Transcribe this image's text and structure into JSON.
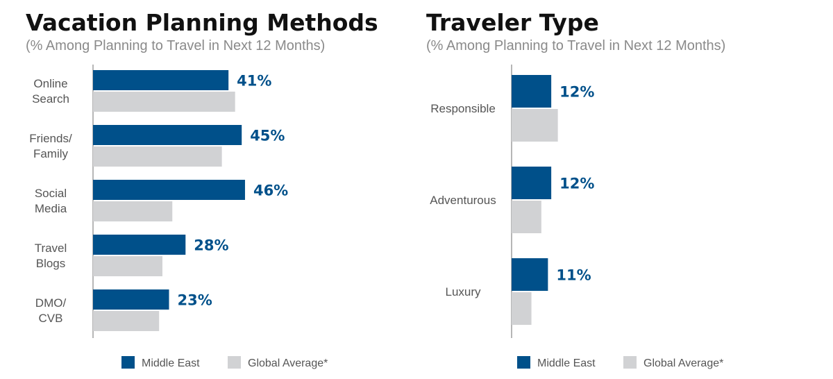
{
  "colors": {
    "primary": "#00508a",
    "secondary": "#d1d2d4",
    "axis": "#6e6e6e"
  },
  "chart_data": [
    {
      "type": "bar",
      "orientation": "horizontal",
      "title": "Vacation Planning Methods",
      "subtitle": "(% Among Planning to Travel in Next 12 Months)",
      "categories": [
        [
          "Online",
          "Search"
        ],
        [
          "Friends/",
          "Family"
        ],
        [
          "Social",
          "Media"
        ],
        [
          "Travel",
          "Blogs"
        ],
        [
          "DMO/",
          "CVB"
        ]
      ],
      "series": [
        {
          "name": "Middle East",
          "values": [
            41,
            45,
            46,
            28,
            23
          ],
          "labels": [
            "41%",
            "45%",
            "46%",
            "28%",
            "23%"
          ]
        },
        {
          "name": "Global Average*",
          "values": [
            43,
            39,
            24,
            21,
            20
          ]
        }
      ],
      "xlim": [
        0,
        100
      ],
      "grid": false,
      "legend_position": "bottom"
    },
    {
      "type": "bar",
      "orientation": "horizontal",
      "title": "Traveler Type",
      "subtitle": "(% Among Planning to Travel in Next 12 Months)",
      "categories": [
        [
          "Responsible"
        ],
        [
          "Adventurous"
        ],
        [
          "Luxury"
        ]
      ],
      "series": [
        {
          "name": "Middle East",
          "values": [
            12,
            12,
            11
          ],
          "labels": [
            "12%",
            "12%",
            "11%"
          ]
        },
        {
          "name": "Global Average*",
          "values": [
            14,
            9,
            6
          ]
        }
      ],
      "xlim": [
        0,
        50
      ],
      "grid": false,
      "legend_position": "bottom"
    }
  ]
}
